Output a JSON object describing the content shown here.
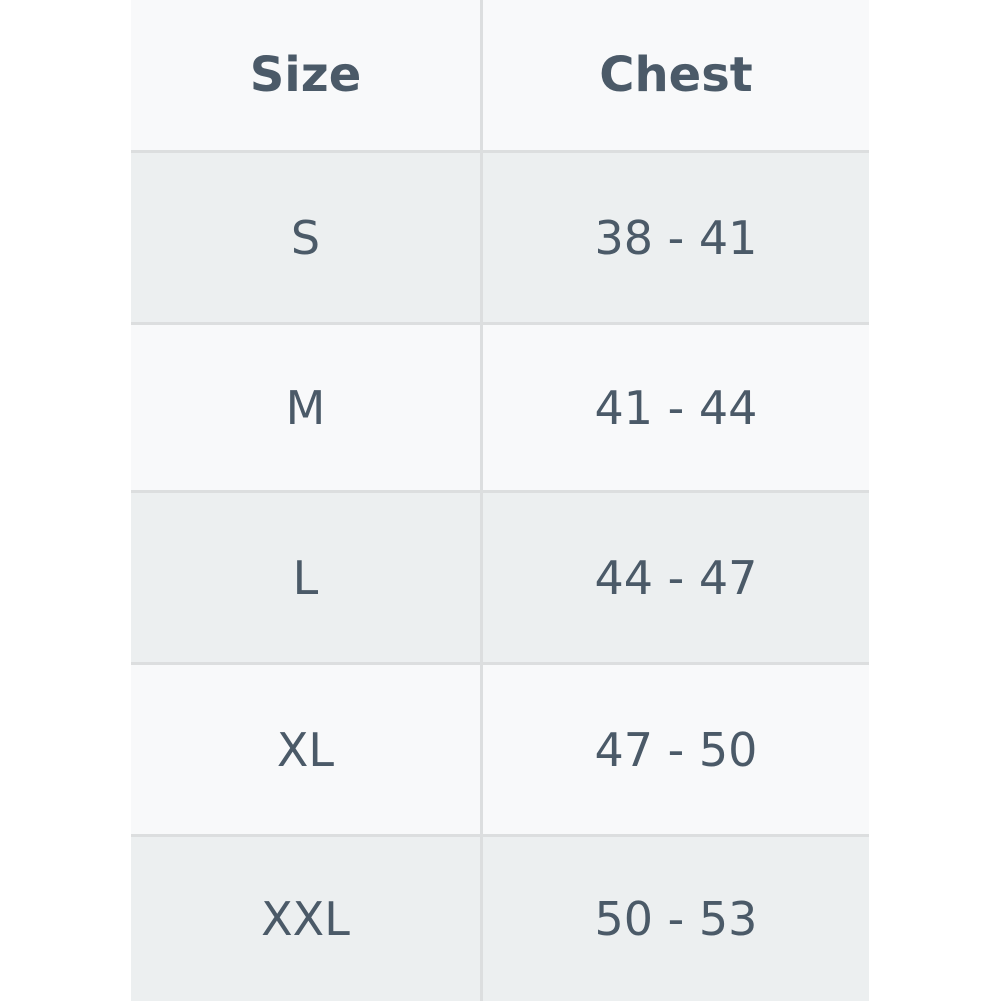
{
  "table": {
    "headers": [
      "Size",
      "Chest"
    ],
    "rows": [
      [
        "S",
        "38 - 41"
      ],
      [
        "M",
        "41 - 44"
      ],
      [
        "L",
        "44 - 47"
      ],
      [
        "XL",
        "47 - 50"
      ],
      [
        "XXL",
        "50 - 53"
      ]
    ]
  }
}
